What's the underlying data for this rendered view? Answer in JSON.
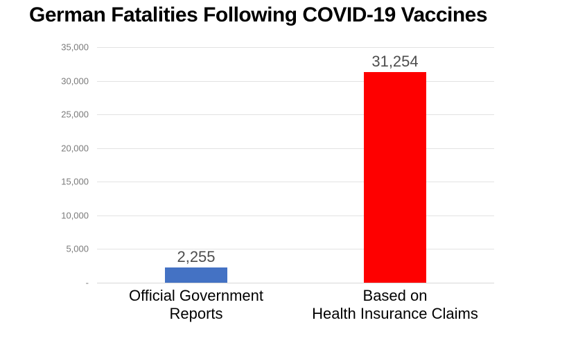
{
  "title": "German Fatalities Following COVID-19 Vaccines",
  "chart_data": {
    "type": "bar",
    "title": "German Fatalities Following COVID-19 Vaccines",
    "categories": [
      [
        "Official Government",
        "Reports"
      ],
      [
        "Based on",
        "Health Insurance Claims"
      ]
    ],
    "values": [
      2255,
      31254
    ],
    "value_labels": [
      "2,255",
      "31,254"
    ],
    "bar_colors": [
      "#4472c4",
      "#fe0000"
    ],
    "xlabel": "",
    "ylabel": "",
    "ylim": [
      0,
      35000
    ],
    "grid": true,
    "legend": "none",
    "y_ticks": [
      {
        "value": 0,
        "label": "-"
      },
      {
        "value": 5000,
        "label": "5,000"
      },
      {
        "value": 10000,
        "label": "10,000"
      },
      {
        "value": 15000,
        "label": "15,000"
      },
      {
        "value": 20000,
        "label": "20,000"
      },
      {
        "value": 25000,
        "label": "25,000"
      },
      {
        "value": 30000,
        "label": "30,000"
      },
      {
        "value": 35000,
        "label": "35,000"
      }
    ]
  }
}
